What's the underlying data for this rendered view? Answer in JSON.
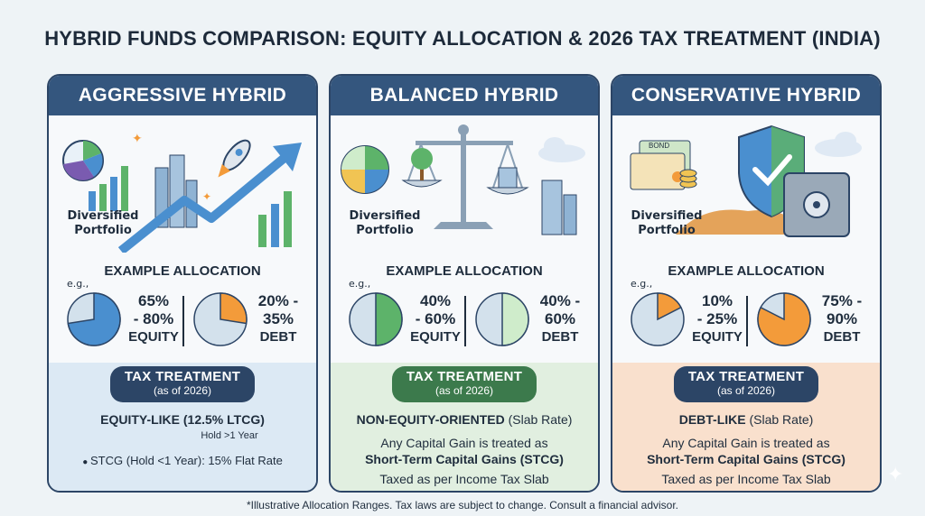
{
  "title": "HYBRID FUNDS COMPARISON: EQUITY ALLOCATION & 2026 TAX TREATMENT (INDIA)",
  "common": {
    "portfolio_label_1": "Diversified",
    "portfolio_label_2": "Portfolio",
    "example_title": "EXAMPLE ALLOCATION",
    "eg": "e.g.,",
    "tax_title": "TAX TREATMENT",
    "tax_sub": "(as of 2026)",
    "equity_word": "EQUITY",
    "debt_word": "DEBT"
  },
  "cards": [
    {
      "header": "AGGRESSIVE HYBRID",
      "equity_pct_1": "65%",
      "equity_pct_2": "- 80%",
      "debt_pct_1": "20% -",
      "debt_pct_2": "35%",
      "equity_fraction": 0.725,
      "debt_fraction": 0.275,
      "tax_bold": "EQUITY-LIKE (12.5% LTCG)",
      "tax_hold": "Hold >1 Year",
      "stcg_line": "STCG (Hold <1 Year): 15% Flat Rate",
      "tax_zone_color": "#dce9f4",
      "pill_color": "#2c4566",
      "pie_equity_color": "#4a8fcf",
      "pie_debt_color": "#f39b3a"
    },
    {
      "header": "BALANCED HYBRID",
      "equity_pct_1": "40%",
      "equity_pct_2": "- 60%",
      "debt_pct_1": "40% -",
      "debt_pct_2": "60%",
      "equity_fraction": 0.5,
      "debt_fraction": 0.5,
      "tax_bold": "NON-EQUITY-ORIENTED",
      "tax_rest": " (Slab Rate)",
      "line1": "Any Capital Gain is treated as",
      "line2_bold": "Short-Term Capital Gains (STCG)",
      "line3": "Taxed as per Income Tax Slab",
      "tax_zone_color": "#e1efe0",
      "pill_color": "#3c7a4c",
      "pie_equity_color": "#5db36a",
      "pie_debt_color": "#cfeccb"
    },
    {
      "header": "CONSERVATIVE HYBRID",
      "equity_pct_1": "10%",
      "equity_pct_2": "- 25%",
      "debt_pct_1": "75% -",
      "debt_pct_2": "90%",
      "equity_fraction": 0.175,
      "debt_fraction": 0.825,
      "tax_bold": "DEBT-LIKE",
      "tax_rest": " (Slab Rate)",
      "line1": "Any Capital Gain is treated as",
      "line2_bold": "Short-Term Capital Gains (STCG)",
      "line3": "Taxed as per Income Tax Slab",
      "tax_zone_color": "#f9e0cd",
      "pill_color": "#2c4566",
      "pie_equity_color": "#f39b3a",
      "pie_debt_color": "#f39b3a"
    }
  ],
  "footer": "*Illustrative Allocation Ranges. Tax laws are subject to change. Consult a financial advisor."
}
